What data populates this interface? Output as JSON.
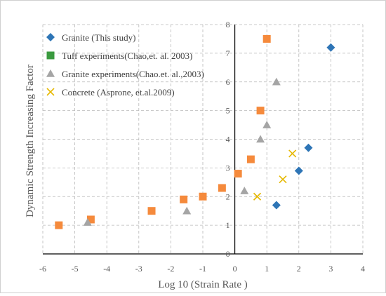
{
  "chart_data": {
    "type": "scatter",
    "xlabel": "Log 10 (Strain Rate )",
    "ylabel": "Dynamic Strength Increasing Factor",
    "xlim": [
      -6,
      4
    ],
    "ylim": [
      0,
      8
    ],
    "xticks": [
      -6,
      -5,
      -4,
      -3,
      -2,
      -1,
      0,
      1,
      2,
      3,
      4
    ],
    "yticks": [
      0,
      1,
      2,
      3,
      4,
      5,
      6,
      7,
      8
    ],
    "grid": true,
    "legend_position": "top-left",
    "series": [
      {
        "name": "Granite (This study)",
        "marker": "diamond",
        "color": "#2e75b6",
        "points": [
          [
            1.3,
            1.7
          ],
          [
            2.0,
            2.9
          ],
          [
            2.3,
            3.7
          ],
          [
            3.0,
            7.2
          ]
        ]
      },
      {
        "name": "Tuff experiments(Chao,et. al. 2003)",
        "marker": "square",
        "color": "#f58a3c",
        "legend_color": "#3a9a3f",
        "points": [
          [
            -5.5,
            1.0
          ],
          [
            -4.5,
            1.2
          ],
          [
            -2.6,
            1.5
          ],
          [
            -1.6,
            1.9
          ],
          [
            -1.0,
            2.0
          ],
          [
            -0.4,
            2.3
          ],
          [
            0.1,
            2.8
          ],
          [
            0.5,
            3.3
          ],
          [
            0.8,
            5.0
          ],
          [
            1.0,
            7.5
          ]
        ]
      },
      {
        "name": "Granite experiments(Chao.et. al.,2003)",
        "marker": "triangle",
        "color": "#a5a5a5",
        "points": [
          [
            -4.6,
            1.1
          ],
          [
            -1.5,
            1.5
          ],
          [
            0.3,
            2.2
          ],
          [
            0.8,
            4.0
          ],
          [
            1.0,
            4.5
          ],
          [
            1.3,
            6.0
          ]
        ]
      },
      {
        "name": "Concrete (Asprone, et.al.2009)",
        "marker": "x",
        "color": "#e6b800",
        "points": [
          [
            0.7,
            2.0
          ],
          [
            1.5,
            2.6
          ],
          [
            1.8,
            3.5
          ]
        ]
      }
    ]
  }
}
